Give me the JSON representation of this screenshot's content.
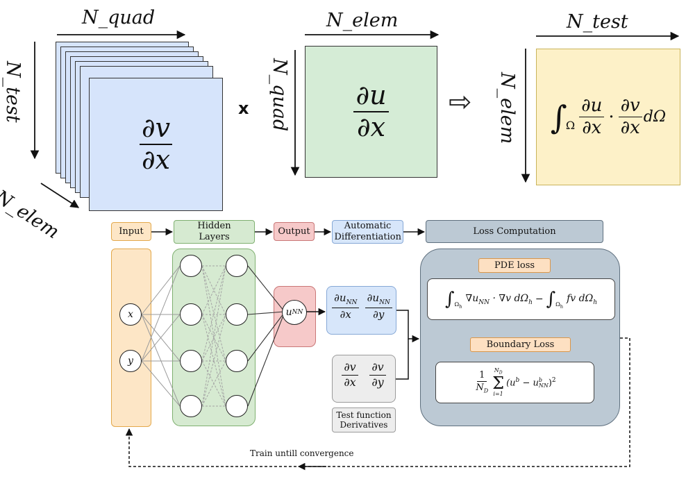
{
  "top": {
    "left_matrix": {
      "top_label": "N_quad",
      "side_label": "N_test",
      "depth_label": "N_elem",
      "num": "∂v",
      "den": "∂x",
      "fill": "#d6e4fb"
    },
    "times_symbol": "x",
    "middle_matrix": {
      "top_label": "N_elem",
      "side_label": "N_quad",
      "num": "∂u",
      "den": "∂x",
      "fill": "#d5ecd6"
    },
    "implies_symbol": "⇨",
    "right_matrix": {
      "top_label": "N_test",
      "side_label": "N_elem",
      "integral": "∫",
      "domain": "Ω",
      "num1": "∂u",
      "den1": "∂x",
      "dot": "·",
      "num2": "∂v",
      "den2": "∂x",
      "measure": "dΩ",
      "fill": "#fdf1c8"
    }
  },
  "pipeline": {
    "input": "Input",
    "hidden": "Hidden Layers",
    "output": "Output",
    "autodiff": "Automatic Differentiation",
    "loss": "Loss Computation"
  },
  "network": {
    "input_x": "x",
    "input_y": "y",
    "output_node": "u",
    "output_sub": "NN"
  },
  "derivs": {
    "nn_num1": "∂u",
    "nn_num1_sub": "NN",
    "nn_den1": "∂x",
    "nn_num2": "∂u",
    "nn_num2_sub": "NN",
    "nn_den2": "∂y",
    "test_num1": "∂v",
    "test_den1": "∂x",
    "test_num2": "∂v",
    "test_den2": "∂y",
    "test_caption": "Test function Derivatives"
  },
  "loss": {
    "pde_title": "PDE loss",
    "pde_int": "∫",
    "pde_sub": "Ω",
    "pde_sub2": "h",
    "pde_term1": "∇u",
    "pde_term1_sub": "NN",
    "pde_term1_rest": " · ∇v dΩ",
    "pde_term1_rest_sub": "h",
    "pde_minus": "−",
    "pde_term2": "fv dΩ",
    "pde_term2_sub": "h",
    "boundary_title": "Boundary Loss",
    "bd_one": "1",
    "bd_nd": "N",
    "bd_nd_sub": "D",
    "bd_sigma": "Σ",
    "bd_sigma_top": "N",
    "bd_sigma_top_sub": "D",
    "bd_sigma_bottom": "i=1",
    "bd_body": "(u",
    "bd_body_sup": "b",
    "bd_minus": " − u",
    "bd_body2_sup": "b",
    "bd_body2_sub": "NN",
    "bd_close": ")",
    "bd_power": "2"
  },
  "feedback": {
    "label": "Train untill convergence"
  },
  "colors": {
    "input": "#fde6c6",
    "input_border": "#e3a84a",
    "hidden": "#d6ead1",
    "hidden_border": "#7fb070",
    "output": "#f6c9c9",
    "output_border": "#c97777",
    "autodiff": "#d7e6fa",
    "autodiff_border": "#86a8d6",
    "loss": "#bcc9d4",
    "loss_border": "#5e6f7e",
    "tag_fill": "#fde0c2",
    "tag_border": "#d9964a",
    "test_fill": "#ededed",
    "test_border": "#9a9a9a"
  }
}
